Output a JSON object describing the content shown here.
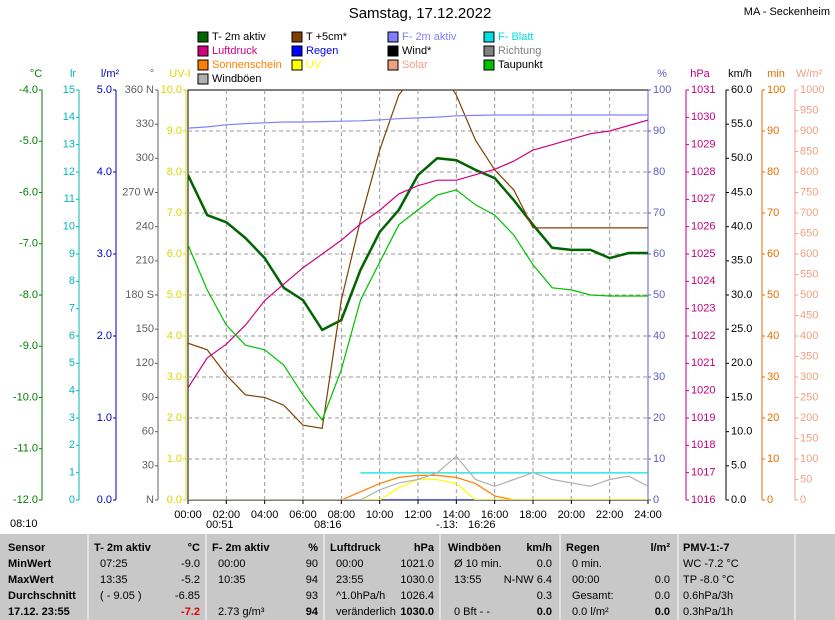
{
  "chart_data": {
    "type": "line",
    "title": "Samstag, 17.12.2022",
    "subtitle": "MA - Seckenheim",
    "grid": true,
    "x": [
      0,
      1,
      2,
      3,
      4,
      5,
      6,
      7,
      8,
      9,
      10,
      11,
      12,
      13,
      14,
      15,
      16,
      17,
      18,
      19,
      20,
      21,
      22,
      23,
      24
    ],
    "xlim": [
      0,
      24
    ],
    "xticks": [
      {
        "value": 0,
        "label": "00:00"
      },
      {
        "value": 2,
        "label": "02:00"
      },
      {
        "value": 4,
        "label": "04:00"
      },
      {
        "value": 6,
        "label": "06:00"
      },
      {
        "value": 8,
        "label": "08:00"
      },
      {
        "value": 10,
        "label": "10:00"
      },
      {
        "value": 12,
        "label": "12:00"
      },
      {
        "value": 14,
        "label": "14:00"
      },
      {
        "value": 16,
        "label": "16:00"
      },
      {
        "value": 18,
        "label": "18:00"
      },
      {
        "value": 20,
        "label": "20:00"
      },
      {
        "value": 22,
        "label": "22:00"
      },
      {
        "value": 24,
        "label": "24:00"
      }
    ],
    "axes": [
      {
        "label": "°C",
        "side": "left",
        "color": "#008000",
        "lim": [
          -12,
          -4
        ],
        "ticks": [
          {
            "value": -4,
            "label": "-4.0"
          },
          {
            "value": -5,
            "label": "-5.0"
          },
          {
            "value": -6,
            "label": "-6.0"
          },
          {
            "value": -7,
            "label": "-7.0"
          },
          {
            "value": -8,
            "label": "-8.0"
          },
          {
            "value": -9,
            "label": "-9.0"
          },
          {
            "value": -10,
            "label": "-10.0"
          },
          {
            "value": -11,
            "label": "-11.0"
          },
          {
            "value": -12,
            "label": "-12.0"
          }
        ]
      },
      {
        "label": "lr",
        "side": "left",
        "color": "#00b8b8",
        "lim": [
          0,
          15
        ],
        "ticks": [
          0,
          1,
          2,
          3,
          4,
          5,
          6,
          7,
          8,
          9,
          10,
          11,
          12,
          13,
          14,
          15
        ]
      },
      {
        "label": "l/m²",
        "side": "left",
        "color": "#0000c0",
        "lim": [
          0,
          5
        ],
        "ticks": [
          {
            "value": 0,
            "label": "0.0"
          },
          {
            "value": 1,
            "label": "1.0"
          },
          {
            "value": 2,
            "label": "2.0"
          },
          {
            "value": 3,
            "label": "3.0"
          },
          {
            "value": 4,
            "label": "4.0"
          },
          {
            "value": 5,
            "label": "5.0"
          }
        ]
      },
      {
        "label": "°",
        "side": "left",
        "color": "#606060",
        "lim": [
          0,
          360
        ],
        "ticks": [
          {
            "value": 0,
            "label": "N"
          },
          30,
          60,
          {
            "value": 90,
            "label": "90"
          },
          120,
          150,
          {
            "value": 180,
            "label": "180 S"
          },
          210,
          240,
          {
            "value": 270,
            "label": "270 W"
          },
          300,
          330,
          {
            "value": 360,
            "label": "360 N"
          }
        ]
      },
      {
        "label": "UV-I",
        "side": "left",
        "color": "#d8d800",
        "lim": [
          0,
          10
        ],
        "ticks": [
          {
            "value": 0,
            "label": "0.0"
          },
          {
            "value": 1,
            "label": "1.0"
          },
          {
            "value": 2,
            "label": "2.0"
          },
          {
            "value": 3,
            "label": "3.0"
          },
          {
            "value": 4,
            "label": "4.0"
          },
          {
            "value": 5,
            "label": "5.0"
          },
          {
            "value": 6,
            "label": "6.0"
          },
          {
            "value": 7,
            "label": "7.0"
          },
          {
            "value": 8,
            "label": "8.0"
          },
          {
            "value": 9,
            "label": "9.0"
          },
          {
            "value": 10,
            "label": "10.0"
          }
        ]
      },
      {
        "label": "%",
        "side": "right",
        "color": "#6060c0",
        "lim": [
          0,
          100
        ],
        "ticks": [
          0,
          10,
          20,
          30,
          40,
          50,
          60,
          70,
          80,
          90,
          100
        ]
      },
      {
        "label": "hPa",
        "side": "right",
        "color": "#c00080",
        "lim": [
          1016,
          1031
        ],
        "ticks": [
          1016,
          1017,
          1018,
          1019,
          1020,
          1021,
          1022,
          1023,
          1024,
          1025,
          1026,
          1027,
          1028,
          1029,
          1030,
          1031
        ]
      },
      {
        "label": "km/h",
        "side": "right",
        "color": "#000000",
        "lim": [
          0,
          60
        ],
        "ticks": [
          {
            "value": 0,
            "label": "0.0"
          },
          {
            "value": 5,
            "label": "5.0"
          },
          {
            "value": 10,
            "label": "10.0"
          },
          {
            "value": 15,
            "label": "15.0"
          },
          {
            "value": 20,
            "label": "20.0"
          },
          {
            "value": 25,
            "label": "25.0"
          },
          {
            "value": 30,
            "label": "30.0"
          },
          {
            "value": 35,
            "label": "35.0"
          },
          {
            "value": 40,
            "label": "40.0"
          },
          {
            "value": 45,
            "label": "45.0"
          },
          {
            "value": 50,
            "label": "50.0"
          },
          {
            "value": 55,
            "label": "55.0"
          },
          {
            "value": 60,
            "label": "60.0"
          }
        ]
      },
      {
        "label": "min",
        "side": "right",
        "color": "#e07000",
        "lim": [
          0,
          100
        ],
        "ticks": [
          0,
          10,
          20,
          30,
          40,
          50,
          60,
          70,
          80,
          90,
          100
        ]
      },
      {
        "label": "W/m²",
        "side": "right",
        "color": "#f0a080",
        "lim": [
          0,
          1000
        ],
        "ticks": [
          0,
          50,
          100,
          150,
          200,
          250,
          300,
          350,
          400,
          450,
          500,
          550,
          600,
          650,
          700,
          750,
          800,
          850,
          900,
          950,
          1000
        ]
      }
    ],
    "series": [
      {
        "name": "T- 2m aktiv",
        "color": "#006400",
        "axis": "°C",
        "values": [
          -5.66,
          -6.44,
          -6.58,
          -6.89,
          -7.28,
          -7.86,
          -8.1,
          -8.68,
          -8.49,
          -7.51,
          -6.77,
          -6.34,
          -5.66,
          -5.33,
          -5.37,
          -5.56,
          -5.72,
          -6.15,
          -6.63,
          -7.08,
          -7.12,
          -7.12,
          -7.28,
          -7.18,
          -7.18
        ]
      },
      {
        "name": "T +5cm*",
        "color": "#804000",
        "axis": "°C",
        "values": [
          -8.94,
          -9.07,
          -9.56,
          -9.95,
          -10.0,
          -10.15,
          -10.54,
          -10.6,
          -8.1,
          -6.54,
          -5.17,
          -4.1,
          -3.6,
          -3.5,
          -4.1,
          -4.98,
          -5.56,
          -5.95,
          -6.69,
          -6.69,
          -6.69,
          -6.69,
          -6.69,
          -6.69,
          -6.69
        ]
      },
      {
        "name": "F- 2m aktiv",
        "color": "#8080ff",
        "axis": "%",
        "values": [
          90.7,
          91,
          91.5,
          91.8,
          92,
          92.2,
          92.2,
          92.3,
          92.4,
          92.5,
          92.7,
          93,
          93.2,
          93.4,
          93.7,
          93.8,
          93.9,
          93.9,
          93.9,
          93.9,
          93.9,
          93.9,
          93.9,
          93.9,
          93.9
        ]
      },
      {
        "name": "F- Blatt",
        "color": "#00e0e0",
        "axis": "%",
        "values": [
          null,
          null,
          null,
          null,
          null,
          null,
          null,
          null,
          null,
          6.6,
          6.6,
          6.6,
          6.6,
          6.6,
          6.6,
          6.6,
          6.6,
          6.6,
          6.6,
          6.6,
          6.6,
          6.6,
          6.6,
          6.6,
          6.6
        ]
      },
      {
        "name": "Luftdruck",
        "color": "#d00080",
        "axis": "hPa",
        "values": [
          1020.1,
          1021.2,
          1021.7,
          1022.4,
          1023.3,
          1023.9,
          1024.5,
          1025.0,
          1025.5,
          1026.1,
          1026.6,
          1027.2,
          1027.5,
          1027.7,
          1027.7,
          1027.9,
          1028.1,
          1028.4,
          1028.8,
          1029.0,
          1029.2,
          1029.4,
          1029.5,
          1029.7,
          1029.9
        ]
      },
      {
        "name": "Regen",
        "color": "#0000ff",
        "axis": "l/m²",
        "values": [
          0,
          0,
          0,
          0,
          0,
          0,
          0,
          0,
          0,
          0,
          0,
          0,
          0,
          0,
          0,
          0,
          0,
          0,
          0,
          0,
          0,
          0,
          0,
          0,
          0
        ]
      },
      {
        "name": "Wind*",
        "color": "#000000",
        "axis": "km/h",
        "values": [
          null,
          null,
          null,
          null,
          null,
          null,
          null,
          null,
          null,
          null,
          null,
          null,
          null,
          null,
          null,
          null,
          null,
          null,
          null,
          null,
          null,
          null,
          null,
          null,
          null
        ]
      },
      {
        "name": "Richtung",
        "color": "#808080",
        "axis": "°",
        "values": [
          null,
          null,
          null,
          null,
          null,
          null,
          null,
          null,
          null,
          null,
          null,
          null,
          null,
          null,
          null,
          null,
          null,
          null,
          null,
          null,
          null,
          null,
          null,
          null,
          null
        ]
      },
      {
        "name": "Sonnenschein",
        "color": "#ff8000",
        "axis": "min",
        "values": [
          0,
          0,
          0,
          0,
          0,
          0,
          0,
          0,
          0,
          2,
          4,
          5.5,
          6,
          6,
          5.5,
          4,
          1,
          0,
          0,
          0,
          0,
          0,
          0,
          0,
          0
        ]
      },
      {
        "name": "UV",
        "color": "#ffff00",
        "axis": "UV-I",
        "values": [
          0,
          0,
          0,
          0,
          0,
          0,
          0,
          0,
          0,
          0,
          0,
          0.3,
          0.5,
          0.5,
          0.4,
          0,
          0,
          0,
          0,
          0,
          0,
          0,
          0,
          0,
          0
        ]
      },
      {
        "name": "Solar",
        "color": "#f0a080",
        "axis": "W/m²",
        "values": [
          null,
          null,
          null,
          null,
          null,
          null,
          null,
          null,
          null,
          null,
          null,
          null,
          null,
          null,
          null,
          null,
          null,
          null,
          null,
          null,
          null,
          null,
          null,
          null,
          null
        ]
      },
      {
        "name": "Taupunkt",
        "color": "#00c000",
        "axis": "°C",
        "values": [
          -7.02,
          -7.9,
          -8.59,
          -8.98,
          -9.07,
          -9.37,
          -9.95,
          -10.44,
          -9.46,
          -8.1,
          -7.36,
          -6.63,
          -6.34,
          -6.05,
          -5.95,
          -6.24,
          -6.44,
          -6.83,
          -7.41,
          -7.86,
          -7.9,
          -8.0,
          -8.02,
          -8.02,
          -8.02
        ]
      },
      {
        "name": "Windböen",
        "color": "#b0b0b0",
        "axis": "km/h",
        "values": [
          0,
          0,
          0,
          0,
          0,
          0,
          0,
          0,
          0,
          0,
          1.5,
          2.5,
          3,
          4,
          6.4,
          3,
          2,
          3,
          4,
          3,
          2.5,
          2,
          3,
          3.5,
          2
        ]
      }
    ],
    "annotations": [
      "08:10",
      "00:51",
      "08:16",
      "-.13:",
      "16:26"
    ]
  },
  "table": {
    "sensor": {
      "header": "Sensor",
      "rows": [
        "MinWert",
        "MaxWert",
        "Durchschnitt",
        "17.12. 23:55"
      ]
    },
    "columns": [
      {
        "header": [
          "T- 2m aktiv",
          "°C"
        ],
        "rows": [
          [
            "07:25",
            "-9.0"
          ],
          [
            "13:35",
            "-5.2"
          ],
          [
            "( - 9.05 )",
            "-6.85"
          ],
          [
            null,
            "-7.2"
          ]
        ]
      },
      {
        "header": [
          "F- 2m aktiv",
          "%"
        ],
        "rows": [
          [
            "00:00",
            "90"
          ],
          [
            "10:35",
            "94"
          ],
          [
            null,
            "93"
          ],
          [
            "2.73 g/m³",
            "94"
          ]
        ]
      },
      {
        "header": [
          "Luftdruck",
          "hPa"
        ],
        "rows": [
          [
            "00:00",
            "1021.0"
          ],
          [
            "23:55",
            "1030.0"
          ],
          [
            "^1.0hPa/h",
            "1026.4"
          ],
          [
            "veränderlich",
            "1030.0"
          ]
        ]
      },
      {
        "header": [
          "Windböen",
          "km/h"
        ],
        "rows": [
          [
            "Ø 10 min.",
            "0.0"
          ],
          [
            "13:55",
            "N-NW 6.4"
          ],
          [
            null,
            "0.3"
          ],
          [
            "0 Bft - -",
            "0.0"
          ]
        ]
      },
      {
        "header": [
          "Regen",
          "l/m²"
        ],
        "rows": [
          [
            "0 min.",
            null
          ],
          [
            "00:00",
            "0.0"
          ],
          [
            "Gesamt:",
            "0.0"
          ],
          [
            "0.0 l/m²",
            "0.0"
          ]
        ]
      },
      {
        "header": [
          "PMV-1:-7"
        ],
        "rows": [
          [
            "WC -7.2 °C"
          ],
          [
            "TP -8.0 °C"
          ],
          [
            "0.6hPa/3h"
          ],
          [
            "0.3hPa/1h"
          ]
        ]
      }
    ]
  }
}
